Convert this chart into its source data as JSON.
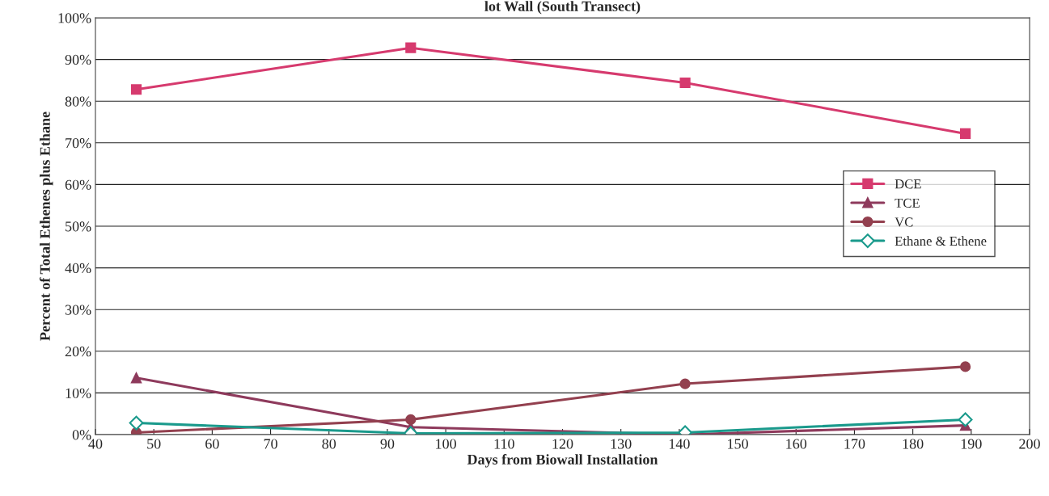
{
  "chart_data": {
    "type": "line",
    "title": "lot Wall (South Transect)",
    "xlabel": "Days from Biowall Installation",
    "ylabel": "Percent of Total Ethenes plus Ethane",
    "x": [
      47,
      94,
      141,
      189
    ],
    "series": [
      {
        "name": "DCE",
        "color": "#d63a6e",
        "marker": "square",
        "values": [
          82.8,
          92.8,
          84.4,
          72.2
        ]
      },
      {
        "name": "TCE",
        "color": "#8e3a5c",
        "marker": "triangle",
        "values": [
          13.6,
          1.8,
          0,
          2.2
        ]
      },
      {
        "name": "VC",
        "color": "#93404f",
        "marker": "circle",
        "values": [
          0.5,
          3.6,
          12.2,
          16.3
        ]
      },
      {
        "name": "Ethane & Ethene",
        "color": "#1a9a8c",
        "marker": "diamond",
        "values": [
          2.8,
          0.3,
          0.5,
          3.6
        ]
      }
    ],
    "xlim": [
      40,
      200
    ],
    "xticks": [
      40,
      50,
      60,
      70,
      80,
      90,
      100,
      110,
      120,
      130,
      140,
      150,
      160,
      170,
      180,
      190,
      200
    ],
    "ylim": [
      0,
      100
    ],
    "yticks": [
      {
        "value": 0,
        "label": "0%"
      },
      {
        "value": 10,
        "label": "10%"
      },
      {
        "value": 20,
        "label": "20%"
      },
      {
        "value": 30,
        "label": "30%"
      },
      {
        "value": 40,
        "label": "40%"
      },
      {
        "value": 50,
        "label": "50%"
      },
      {
        "value": 60,
        "label": "60%"
      },
      {
        "value": 70,
        "label": "70%"
      },
      {
        "value": 80,
        "label": "80%"
      },
      {
        "value": 90,
        "label": "90%"
      },
      {
        "value": 100,
        "label": "100%"
      }
    ],
    "grid": "y",
    "legend": "right",
    "line_style": "solid"
  }
}
